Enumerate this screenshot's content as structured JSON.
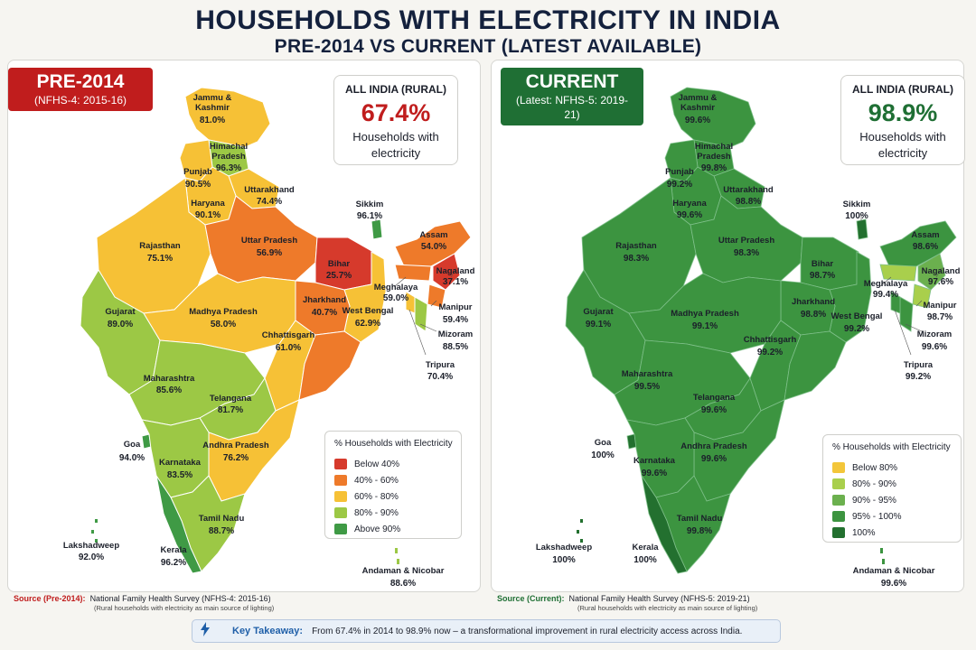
{
  "title": "HOUSEHOLDS WITH ELECTRICITY IN INDIA",
  "subtitle": "PRE-2014 VS CURRENT (LATEST AVAILABLE)",
  "panels": {
    "pre": {
      "badge_title": "PRE-2014",
      "badge_sub": "(NFHS-4: 2015-16)",
      "stat_label": "ALL INDIA (RURAL)",
      "stat_value": "67.4%",
      "stat_desc_1": "Households with",
      "stat_desc_2": "electricity",
      "legend_title": "% Households with Electricity",
      "legend": [
        {
          "label": "Below 40%",
          "color": "#d63a2c"
        },
        {
          "label": "40% - 60%",
          "color": "#ee7a2a"
        },
        {
          "label": "60% - 80%",
          "color": "#f6c136"
        },
        {
          "label": "80% - 90%",
          "color": "#9cc845"
        },
        {
          "label": "Above 90%",
          "color": "#3f9a45"
        }
      ],
      "states": [
        {
          "name": "Jammu &",
          "name2": "Kashmir",
          "value": "81.0%"
        },
        {
          "name": "Himachal",
          "name2": "Pradesh",
          "value": "96.3%"
        },
        {
          "name": "Punjab",
          "value": "90.5%"
        },
        {
          "name": "Uttarakhand",
          "value": "74.4%"
        },
        {
          "name": "Haryana",
          "value": "90.1%"
        },
        {
          "name": "Rajasthan",
          "value": "75.1%"
        },
        {
          "name": "Uttar Pradesh",
          "value": "56.9%"
        },
        {
          "name": "Bihar",
          "value": "25.7%"
        },
        {
          "name": "Sikkim",
          "value": "96.1%"
        },
        {
          "name": "Assam",
          "value": "54.0%"
        },
        {
          "name": "Nagaland",
          "value": "37.1%"
        },
        {
          "name": "Meghalaya",
          "value": "59.0%"
        },
        {
          "name": "Manipur",
          "value": "59.4%"
        },
        {
          "name": "Mizoram",
          "value": "88.5%"
        },
        {
          "name": "Tripura",
          "value": "70.4%"
        },
        {
          "name": "West Bengal",
          "value": "62.9%"
        },
        {
          "name": "Jharkhand",
          "value": "40.7%"
        },
        {
          "name": "Gujarat",
          "value": "89.0%"
        },
        {
          "name": "Madhya Pradesh",
          "value": "58.0%"
        },
        {
          "name": "Chhattisgarh",
          "value": "61.0%"
        },
        {
          "name": "Maharashtra",
          "value": "85.6%"
        },
        {
          "name": "Telangana",
          "value": "81.7%"
        },
        {
          "name": "Andhra Pradesh",
          "value": "76.2%"
        },
        {
          "name": "Goa",
          "value": "94.0%"
        },
        {
          "name": "Karnataka",
          "value": "83.5%"
        },
        {
          "name": "Tamil Nadu",
          "value": "88.7%"
        },
        {
          "name": "Kerala",
          "value": "96.2%"
        },
        {
          "name": "Lakshadweep",
          "value": "92.0%"
        },
        {
          "name": "Andaman & Nicobar",
          "value": "88.6%"
        }
      ],
      "source_label": "Source (Pre-2014):",
      "source_text": "National Family Health Survey (NFHS-4: 2015-16)",
      "source_note": "(Rural households with electricity as main source of lighting)"
    },
    "cur": {
      "badge_title": "CURRENT",
      "badge_sub": "(Latest: NFHS-5: 2019-21)",
      "stat_label": "ALL INDIA (RURAL)",
      "stat_value": "98.9%",
      "stat_desc_1": "Households with",
      "stat_desc_2": "electricity",
      "legend_title": "% Households with Electricity",
      "legend": [
        {
          "label": "Below 80%",
          "color": "#f3c63a"
        },
        {
          "label": "80% - 90%",
          "color": "#a9cf4c"
        },
        {
          "label": "90% - 95%",
          "color": "#6bb04e"
        },
        {
          "label": "95% - 100%",
          "color": "#3c9440"
        },
        {
          "label": "100%",
          "color": "#23702f"
        }
      ],
      "states": [
        {
          "name": "Jammu &",
          "name2": "Kashmir",
          "value": "99.6%"
        },
        {
          "name": "Himachal",
          "name2": "Pradesh",
          "value": "99.8%"
        },
        {
          "name": "Punjab",
          "value": "99.2%"
        },
        {
          "name": "Uttarakhand",
          "value": "98.8%"
        },
        {
          "name": "Haryana",
          "value": "99.6%"
        },
        {
          "name": "Rajasthan",
          "value": "98.3%"
        },
        {
          "name": "Uttar Pradesh",
          "value": "98.3%"
        },
        {
          "name": "Bihar",
          "value": "98.7%"
        },
        {
          "name": "Sikkim",
          "value": "100%"
        },
        {
          "name": "Assam",
          "value": "98.6%"
        },
        {
          "name": "Nagaland",
          "value": "97.6%"
        },
        {
          "name": "Meghalaya",
          "value": "99.4%"
        },
        {
          "name": "Manipur",
          "value": "98.7%"
        },
        {
          "name": "Mizoram",
          "value": "99.6%"
        },
        {
          "name": "Tripura",
          "value": "99.2%"
        },
        {
          "name": "West Bengal",
          "value": "99.2%"
        },
        {
          "name": "Jharkhand",
          "value": "98.8%"
        },
        {
          "name": "Gujarat",
          "value": "99.1%"
        },
        {
          "name": "Madhya Pradesh",
          "value": "99.1%"
        },
        {
          "name": "Chhattisgarh",
          "value": "99.2%"
        },
        {
          "name": "Maharashtra",
          "value": "99.5%"
        },
        {
          "name": "Telangana",
          "value": "99.6%"
        },
        {
          "name": "Andhra Pradesh",
          "value": "99.6%"
        },
        {
          "name": "Goa",
          "value": "100%"
        },
        {
          "name": "Karnataka",
          "value": "99.6%"
        },
        {
          "name": "Tamil Nadu",
          "value": "99.8%"
        },
        {
          "name": "Kerala",
          "value": "100%"
        },
        {
          "name": "Lakshadweep",
          "value": "100%"
        },
        {
          "name": "Andaman & Nicobar",
          "value": "99.6%"
        }
      ],
      "source_label": "Source (Current):",
      "source_text": "National Family Health Survey (NFHS-5: 2019-21)",
      "source_note": "(Rural households with electricity as main source of lighting)"
    }
  },
  "takeaway": {
    "icon": "lightning-bolt-icon",
    "label": "Key Takeaway:",
    "text": "From 67.4% in 2014 to 98.9% now – a transformational improvement in rural electricity access across India."
  }
}
